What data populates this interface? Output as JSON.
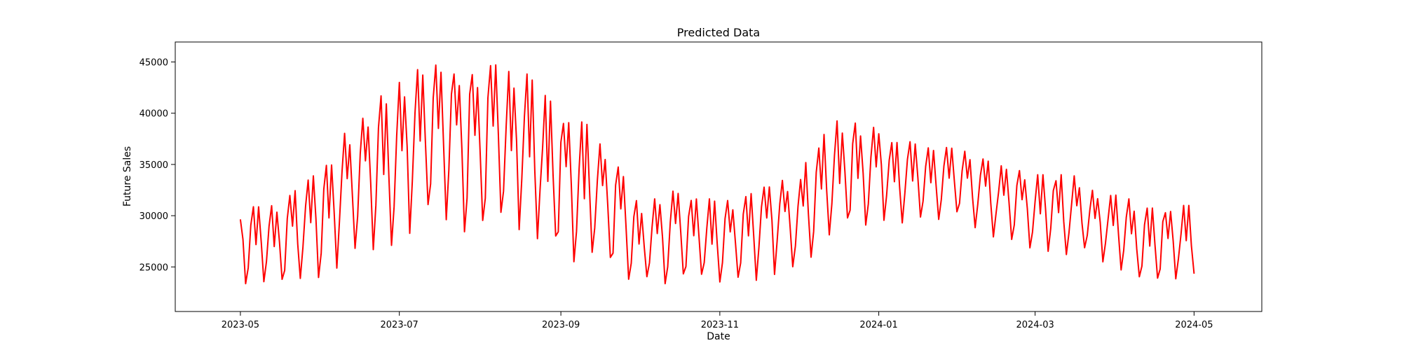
{
  "chart_data": {
    "type": "line",
    "title": "Predicted Data",
    "xlabel": "Date",
    "ylabel": "Future Sales",
    "x_range": [
      "2023-04-06",
      "2024-05-27"
    ],
    "ylim": [
      20650,
      46950
    ],
    "x_ticks": [
      "2023-05-01",
      "2023-07-01",
      "2023-09-01",
      "2023-11-01",
      "2024-01-01",
      "2024-03-01",
      "2024-05-01"
    ],
    "x_tick_labels": [
      "2023-05",
      "2023-07",
      "2023-09",
      "2023-11",
      "2024-01",
      "2024-03",
      "2024-05"
    ],
    "y_ticks": [
      25000,
      30000,
      35000,
      40000,
      45000
    ],
    "y_tick_labels": [
      "25000",
      "30000",
      "35000",
      "40000",
      "45000"
    ],
    "grid": false,
    "legend": "none",
    "series": [
      {
        "color": "#ff0000",
        "pattern": "daily values oscillating between a daily low and a daily high",
        "points": [
          {
            "date": "2023-05-01",
            "low": 22500,
            "high": 30800
          },
          {
            "date": "2023-05-15",
            "low": 22000,
            "high": 31000
          },
          {
            "date": "2023-06-01",
            "low": 22500,
            "high": 34500
          },
          {
            "date": "2023-06-15",
            "low": 24500,
            "high": 40000
          },
          {
            "date": "2023-07-01",
            "low": 25000,
            "high": 43000
          },
          {
            "date": "2023-07-15",
            "low": 27500,
            "high": 45500
          },
          {
            "date": "2023-08-01",
            "low": 26500,
            "high": 44500
          },
          {
            "date": "2023-08-15",
            "low": 27000,
            "high": 45000
          },
          {
            "date": "2023-09-01",
            "low": 24000,
            "high": 40000
          },
          {
            "date": "2023-09-15",
            "low": 23500,
            "high": 38500
          },
          {
            "date": "2023-10-01",
            "low": 22000,
            "high": 31000
          },
          {
            "date": "2023-10-15",
            "low": 22000,
            "high": 32500
          },
          {
            "date": "2023-11-01",
            "low": 22000,
            "high": 31500
          },
          {
            "date": "2023-11-15",
            "low": 23000,
            "high": 32500
          },
          {
            "date": "2023-12-01",
            "low": 24500,
            "high": 34000
          },
          {
            "date": "2023-12-15",
            "low": 26000,
            "high": 39500
          },
          {
            "date": "2024-01-01",
            "low": 29000,
            "high": 38500
          },
          {
            "date": "2024-01-15",
            "low": 28000,
            "high": 37000
          },
          {
            "date": "2024-02-01",
            "low": 28500,
            "high": 36500
          },
          {
            "date": "2024-02-15",
            "low": 27000,
            "high": 35000
          },
          {
            "date": "2024-03-01",
            "low": 25500,
            "high": 34000
          },
          {
            "date": "2024-03-15",
            "low": 25500,
            "high": 34000
          },
          {
            "date": "2024-04-01",
            "low": 23500,
            "high": 32000
          },
          {
            "date": "2024-04-15",
            "low": 22000,
            "high": 31000
          },
          {
            "date": "2024-05-01",
            "low": 22500,
            "high": 31000
          }
        ]
      }
    ]
  }
}
